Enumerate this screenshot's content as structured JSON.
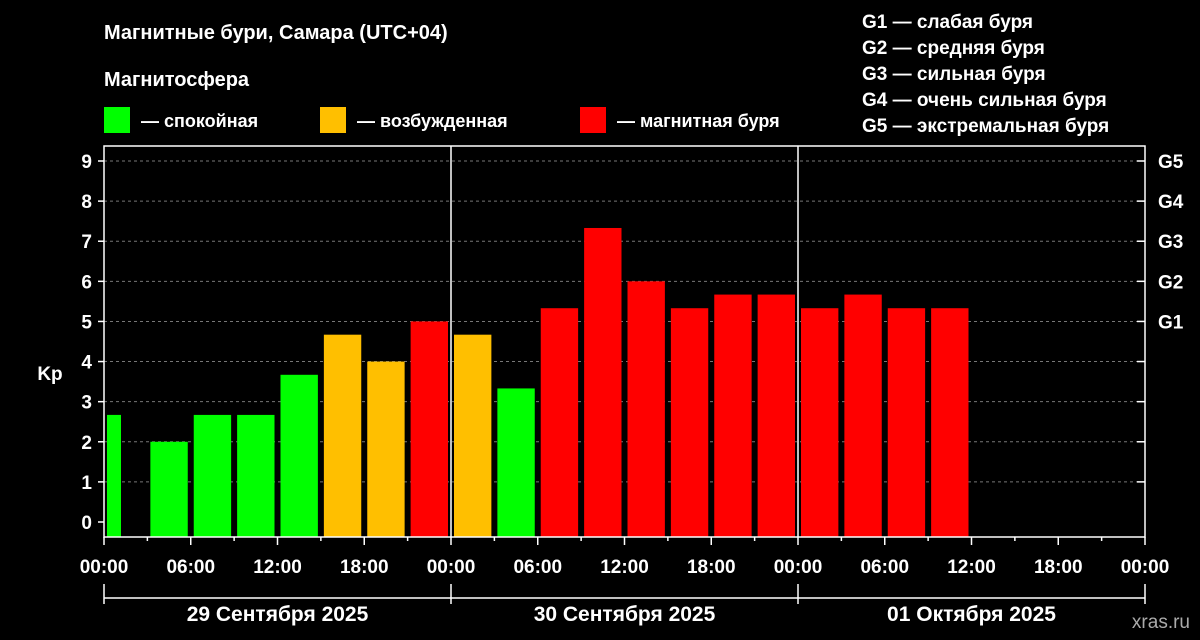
{
  "title": "Магнитные бури, Самара (UTC+04)",
  "legend": {
    "heading": "Магнитосфера",
    "items": [
      {
        "label": "— спокойная",
        "color": "#00ff00"
      },
      {
        "label": "— возбужденная",
        "color": "#ffbf00"
      },
      {
        "label": "— магнитная буря",
        "color": "#ff0000"
      }
    ]
  },
  "g_scale": [
    "G1 — слабая буря",
    "G2 — средняя буря",
    "G3 — сильная буря",
    "G4 — очень сильная буря",
    "G5 — экстремальная буря"
  ],
  "watermark": "xras.ru",
  "chart_data": {
    "type": "bar",
    "ylabel": "Kp",
    "ylim": [
      0,
      9
    ],
    "y_ticks": [
      "0",
      "1",
      "2",
      "3",
      "4",
      "5",
      "6",
      "7",
      "8",
      "9"
    ],
    "right_ticks": [
      {
        "value": 5,
        "label": "G1"
      },
      {
        "value": 6,
        "label": "G2"
      },
      {
        "value": 7,
        "label": "G3"
      },
      {
        "value": 8,
        "label": "G4"
      },
      {
        "value": 9,
        "label": "G5"
      }
    ],
    "x_ticks": [
      "00:00",
      "06:00",
      "12:00",
      "18:00",
      "00:00",
      "06:00",
      "12:00",
      "18:00",
      "00:00",
      "06:00",
      "12:00",
      "18:00",
      "00:00"
    ],
    "dates": [
      "29 Сентября 2025",
      "30 Сентября 2025",
      "01 Октября 2025"
    ],
    "grid_y": true,
    "bars": [
      {
        "value": 2.67,
        "level": "quiet"
      },
      {
        "value": 2.0,
        "level": "quiet"
      },
      {
        "value": 2.67,
        "level": "quiet"
      },
      {
        "value": 2.67,
        "level": "quiet"
      },
      {
        "value": 3.67,
        "level": "quiet"
      },
      {
        "value": 4.67,
        "level": "active"
      },
      {
        "value": 4.0,
        "level": "active"
      },
      {
        "value": 5.0,
        "level": "storm"
      },
      {
        "value": 4.67,
        "level": "active"
      },
      {
        "value": 3.33,
        "level": "quiet"
      },
      {
        "value": 5.33,
        "level": "storm"
      },
      {
        "value": 7.33,
        "level": "storm"
      },
      {
        "value": 6.0,
        "level": "storm"
      },
      {
        "value": 5.33,
        "level": "storm"
      },
      {
        "value": 5.67,
        "level": "storm"
      },
      {
        "value": 5.67,
        "level": "storm"
      },
      {
        "value": 5.33,
        "level": "storm"
      },
      {
        "value": 5.67,
        "level": "storm"
      },
      {
        "value": 5.33,
        "level": "storm"
      },
      {
        "value": 5.33,
        "level": "storm"
      }
    ],
    "colors": {
      "quiet": "#00ff00",
      "active": "#ffbf00",
      "storm": "#ff0000"
    }
  }
}
